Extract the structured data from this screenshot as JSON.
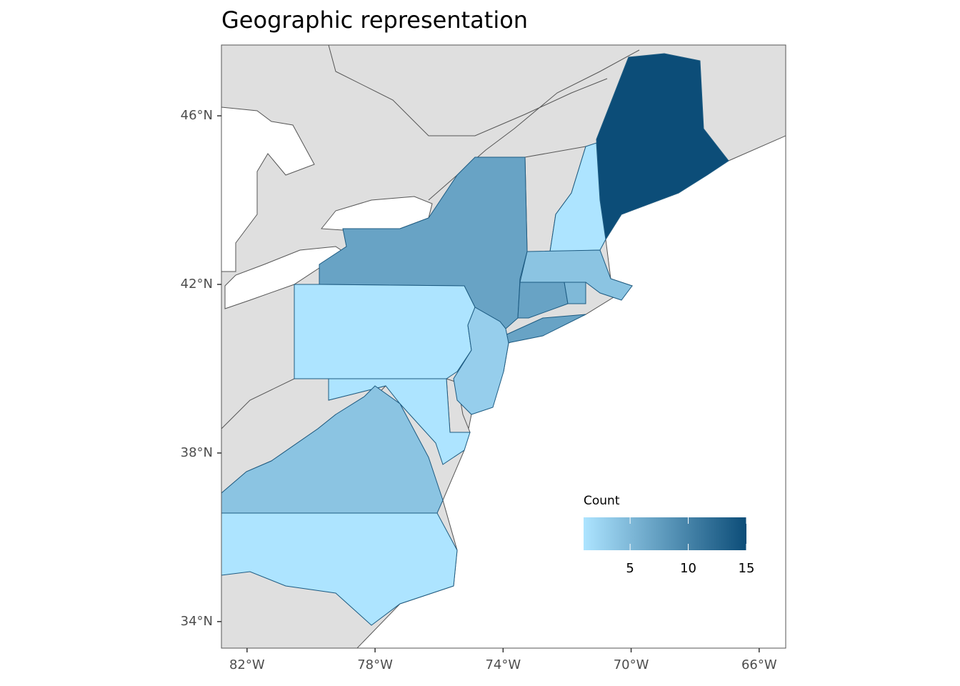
{
  "chart_data": {
    "type": "choropleth",
    "title": "Geographic representation",
    "legend_title": "Count",
    "values": [
      15,
      1,
      7,
      4,
      7,
      5,
      1,
      3,
      1,
      4,
      1
    ],
    "color_low": "#ade4ff",
    "color_high": "#0c4d78",
    "clim": [
      1,
      15
    ],
    "cticks": [
      5,
      10,
      15
    ],
    "xlim": [
      -82.8,
      -65.17
    ],
    "ylim": [
      33.37,
      47.68
    ],
    "xticks": [
      {
        "value": -82,
        "label": "82°W"
      },
      {
        "value": -78,
        "label": "78°W"
      },
      {
        "value": -74,
        "label": "74°W"
      },
      {
        "value": -70,
        "label": "70°W"
      },
      {
        "value": -66,
        "label": "66°W"
      }
    ],
    "yticks": [
      {
        "value": 34,
        "label": "34°N"
      },
      {
        "value": 38,
        "label": "38°N"
      },
      {
        "value": 42,
        "label": "42°N"
      },
      {
        "value": 46,
        "label": "46°N"
      }
    ]
  }
}
